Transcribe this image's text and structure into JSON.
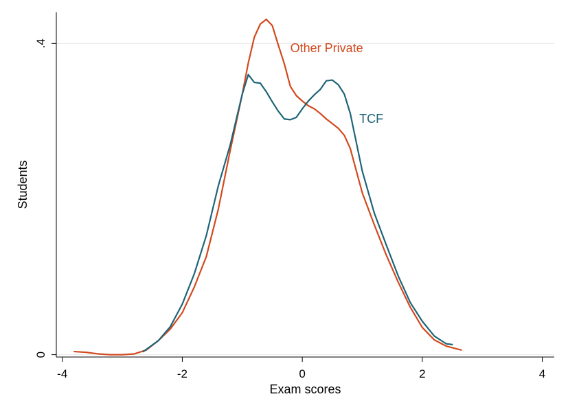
{
  "chart_data": {
    "type": "line",
    "title": "",
    "xlabel": "Exam scores",
    "ylabel": "Students",
    "xlim": [
      -4.1,
      4.2
    ],
    "ylim": [
      -0.003,
      0.44
    ],
    "x_ticks": [
      -4,
      -2,
      0,
      2,
      4
    ],
    "x_tick_labels": [
      "-4",
      "-2",
      "0",
      "2",
      "4"
    ],
    "y_ticks": [
      0,
      0.4
    ],
    "y_tick_labels": [
      "0",
      ".4"
    ],
    "grid": "horizontal at y ticks",
    "legend": "none (direct labels)",
    "series": [
      {
        "name": "Other Private",
        "color": "#d2491e",
        "label_at": [
          -0.2,
          0.389
        ],
        "x": [
          -3.8,
          -3.6,
          -3.4,
          -3.2,
          -3.0,
          -2.8,
          -2.6,
          -2.4,
          -2.2,
          -2.0,
          -1.8,
          -1.6,
          -1.4,
          -1.2,
          -1.0,
          -0.9,
          -0.8,
          -0.7,
          -0.6,
          -0.5,
          -0.4,
          -0.3,
          -0.2,
          -0.1,
          0.0,
          0.1,
          0.2,
          0.3,
          0.4,
          0.5,
          0.6,
          0.7,
          0.8,
          1.0,
          1.2,
          1.4,
          1.6,
          1.8,
          2.0,
          2.2,
          2.4,
          2.65
        ],
        "y": [
          0.004,
          0.003,
          0.001,
          0.0,
          0.0,
          0.001,
          0.006,
          0.018,
          0.033,
          0.054,
          0.087,
          0.126,
          0.187,
          0.263,
          0.335,
          0.375,
          0.408,
          0.425,
          0.431,
          0.423,
          0.398,
          0.374,
          0.345,
          0.333,
          0.326,
          0.32,
          0.316,
          0.31,
          0.303,
          0.297,
          0.291,
          0.282,
          0.265,
          0.208,
          0.167,
          0.128,
          0.093,
          0.061,
          0.035,
          0.019,
          0.011,
          0.006
        ]
      },
      {
        "name": "TCF",
        "color": "#1e6478",
        "label_at": [
          0.95,
          0.298
        ],
        "x": [
          -2.65,
          -2.4,
          -2.2,
          -2.0,
          -1.8,
          -1.6,
          -1.4,
          -1.2,
          -1.0,
          -0.9,
          -0.8,
          -0.7,
          -0.6,
          -0.5,
          -0.4,
          -0.3,
          -0.2,
          -0.1,
          0.0,
          0.1,
          0.2,
          0.3,
          0.4,
          0.5,
          0.6,
          0.7,
          0.8,
          1.0,
          1.2,
          1.4,
          1.6,
          1.8,
          2.0,
          2.2,
          2.4,
          2.5
        ],
        "y": [
          0.004,
          0.018,
          0.036,
          0.065,
          0.104,
          0.153,
          0.217,
          0.27,
          0.335,
          0.36,
          0.35,
          0.349,
          0.338,
          0.325,
          0.313,
          0.303,
          0.302,
          0.305,
          0.316,
          0.326,
          0.334,
          0.341,
          0.352,
          0.353,
          0.347,
          0.335,
          0.31,
          0.236,
          0.182,
          0.141,
          0.101,
          0.067,
          0.043,
          0.024,
          0.014,
          0.013
        ]
      }
    ]
  }
}
